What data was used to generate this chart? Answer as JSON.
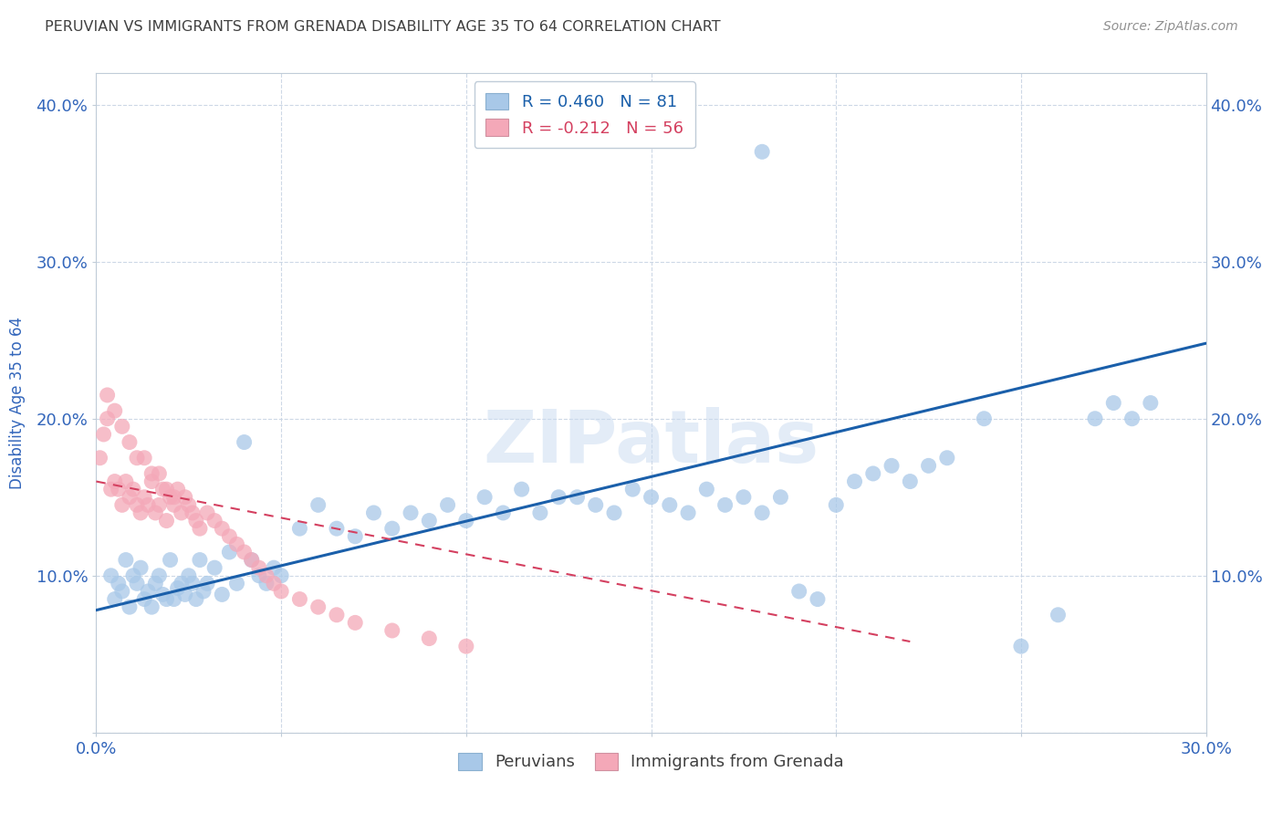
{
  "title": "PERUVIAN VS IMMIGRANTS FROM GRENADA DISABILITY AGE 35 TO 64 CORRELATION CHART",
  "source": "Source: ZipAtlas.com",
  "ylabel": "Disability Age 35 to 64",
  "xlim": [
    0.0,
    0.3
  ],
  "ylim": [
    0.0,
    0.42
  ],
  "blue_R": 0.46,
  "blue_N": 81,
  "pink_R": -0.212,
  "pink_N": 56,
  "blue_color": "#a8c8e8",
  "pink_color": "#f4a8b8",
  "blue_line_color": "#1a5faa",
  "pink_line_color": "#d44060",
  "watermark": "ZIPatlas",
  "blue_scatter_x": [
    0.004,
    0.005,
    0.006,
    0.007,
    0.008,
    0.009,
    0.01,
    0.011,
    0.012,
    0.013,
    0.014,
    0.015,
    0.016,
    0.017,
    0.018,
    0.019,
    0.02,
    0.021,
    0.022,
    0.023,
    0.024,
    0.025,
    0.026,
    0.027,
    0.028,
    0.029,
    0.03,
    0.032,
    0.034,
    0.036,
    0.038,
    0.04,
    0.042,
    0.044,
    0.046,
    0.048,
    0.05,
    0.055,
    0.06,
    0.065,
    0.07,
    0.075,
    0.08,
    0.085,
    0.09,
    0.095,
    0.1,
    0.105,
    0.11,
    0.115,
    0.12,
    0.125,
    0.13,
    0.135,
    0.14,
    0.145,
    0.15,
    0.155,
    0.16,
    0.165,
    0.17,
    0.175,
    0.18,
    0.185,
    0.19,
    0.195,
    0.2,
    0.205,
    0.21,
    0.215,
    0.22,
    0.225,
    0.23,
    0.24,
    0.25,
    0.26,
    0.27,
    0.275,
    0.28,
    0.285,
    0.18
  ],
  "blue_scatter_y": [
    0.1,
    0.085,
    0.095,
    0.09,
    0.11,
    0.08,
    0.1,
    0.095,
    0.105,
    0.085,
    0.09,
    0.08,
    0.095,
    0.1,
    0.088,
    0.085,
    0.11,
    0.085,
    0.092,
    0.095,
    0.088,
    0.1,
    0.095,
    0.085,
    0.11,
    0.09,
    0.095,
    0.105,
    0.088,
    0.115,
    0.095,
    0.185,
    0.11,
    0.1,
    0.095,
    0.105,
    0.1,
    0.13,
    0.145,
    0.13,
    0.125,
    0.14,
    0.13,
    0.14,
    0.135,
    0.145,
    0.135,
    0.15,
    0.14,
    0.155,
    0.14,
    0.15,
    0.15,
    0.145,
    0.14,
    0.155,
    0.15,
    0.145,
    0.14,
    0.155,
    0.145,
    0.15,
    0.14,
    0.15,
    0.09,
    0.085,
    0.145,
    0.16,
    0.165,
    0.17,
    0.16,
    0.17,
    0.175,
    0.2,
    0.055,
    0.075,
    0.2,
    0.21,
    0.2,
    0.21,
    0.37
  ],
  "pink_scatter_x": [
    0.001,
    0.002,
    0.003,
    0.004,
    0.005,
    0.006,
    0.007,
    0.008,
    0.009,
    0.01,
    0.011,
    0.012,
    0.013,
    0.014,
    0.015,
    0.016,
    0.017,
    0.018,
    0.019,
    0.02,
    0.021,
    0.022,
    0.023,
    0.024,
    0.025,
    0.026,
    0.027,
    0.028,
    0.03,
    0.032,
    0.034,
    0.036,
    0.038,
    0.04,
    0.042,
    0.044,
    0.046,
    0.048,
    0.05,
    0.055,
    0.06,
    0.065,
    0.07,
    0.08,
    0.09,
    0.1,
    0.003,
    0.005,
    0.007,
    0.009,
    0.011,
    0.013,
    0.015,
    0.017,
    0.019,
    0.021
  ],
  "pink_scatter_y": [
    0.175,
    0.19,
    0.2,
    0.155,
    0.16,
    0.155,
    0.145,
    0.16,
    0.15,
    0.155,
    0.145,
    0.14,
    0.15,
    0.145,
    0.16,
    0.14,
    0.145,
    0.155,
    0.135,
    0.15,
    0.145,
    0.155,
    0.14,
    0.15,
    0.145,
    0.14,
    0.135,
    0.13,
    0.14,
    0.135,
    0.13,
    0.125,
    0.12,
    0.115,
    0.11,
    0.105,
    0.1,
    0.095,
    0.09,
    0.085,
    0.08,
    0.075,
    0.07,
    0.065,
    0.06,
    0.055,
    0.215,
    0.205,
    0.195,
    0.185,
    0.175,
    0.175,
    0.165,
    0.165,
    0.155,
    0.15
  ],
  "blue_trendline_x": [
    0.0,
    0.3
  ],
  "blue_trendline_y": [
    0.078,
    0.248
  ],
  "pink_trendline_x": [
    0.0,
    0.22
  ],
  "pink_trendline_y": [
    0.16,
    0.058
  ],
  "legend_labels": [
    "Peruvians",
    "Immigrants from Grenada"
  ],
  "background_color": "#ffffff",
  "grid_color": "#c8d4e4",
  "title_color": "#404040",
  "axis_label_color": "#3366bb",
  "tick_label_color": "#3366bb"
}
